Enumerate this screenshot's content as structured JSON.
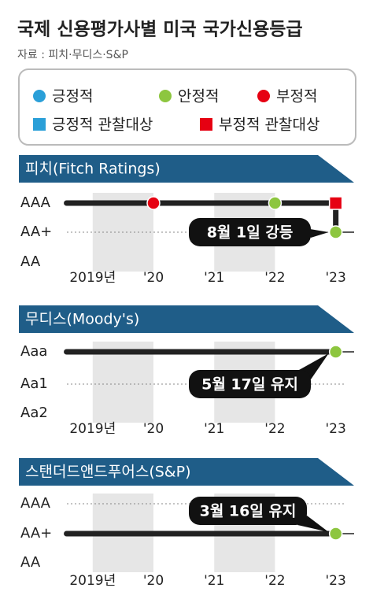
{
  "title": "국제 신용평가사별 미국 국가신용등급",
  "source": "자료 : 피치·무디스·S&P",
  "legend": [
    {
      "label": "긍정적",
      "shape": "circle",
      "color": "#2a9fd8"
    },
    {
      "label": "안정적",
      "shape": "circle",
      "color": "#8dc63f"
    },
    {
      "label": "부정적",
      "shape": "circle",
      "color": "#e60012"
    },
    {
      "label": "긍정적 관찰대상",
      "shape": "square",
      "color": "#2a9fd8"
    },
    {
      "label": "부정적 관찰대상",
      "shape": "square",
      "color": "#e60012"
    }
  ],
  "chart_data": [
    {
      "type": "rating-timeline",
      "title": "피치(Fitch Ratings)",
      "categories": [
        "AAA",
        "AA+",
        "AA"
      ],
      "xlim": [
        2018.2,
        2023.6
      ],
      "xticks": [
        {
          "value": 2019,
          "label": "2019년"
        },
        {
          "value": 2020,
          "label": "'20"
        },
        {
          "value": 2021,
          "label": "'21"
        },
        {
          "value": 2022,
          "label": "'22"
        },
        {
          "value": 2023,
          "label": "'23"
        }
      ],
      "shaded_years": [
        2019,
        2021
      ],
      "dashed_level": "AA+",
      "x": [
        2018.57,
        2023,
        2023
      ],
      "values": [
        "AAA",
        "AAA",
        "AA+"
      ],
      "events": [
        {
          "x": 2020,
          "level": "AAA",
          "marker": 2
        },
        {
          "x": 2022,
          "level": "AAA",
          "marker": 1
        },
        {
          "x": 2023,
          "level": "AAA",
          "marker": 4
        },
        {
          "x": 2023,
          "level": "AA+",
          "marker": 1
        }
      ],
      "annotation": "8월 1일 강등"
    },
    {
      "type": "rating-timeline",
      "title": "무디스(Moody's)",
      "categories": [
        "Aaa",
        "Aa1",
        "Aa2"
      ],
      "xlim": [
        2018.2,
        2023.6
      ],
      "xticks": [
        {
          "value": 2019,
          "label": "2019년"
        },
        {
          "value": 2020,
          "label": "'20"
        },
        {
          "value": 2021,
          "label": "'21"
        },
        {
          "value": 2022,
          "label": "'22"
        },
        {
          "value": 2023,
          "label": "'23"
        }
      ],
      "shaded_years": [
        2019,
        2021
      ],
      "dashed_level": "Aa1",
      "x": [
        2018.57,
        2023
      ],
      "values": [
        "Aaa",
        "Aaa"
      ],
      "events": [
        {
          "x": 2023,
          "level": "Aaa",
          "marker": 1
        }
      ],
      "annotation": "5월 17일 유지"
    },
    {
      "type": "rating-timeline",
      "title": "스탠더드앤드푸어스(S&P)",
      "categories": [
        "AAA",
        "AA+",
        "AA"
      ],
      "xlim": [
        2018.2,
        2023.6
      ],
      "xticks": [
        {
          "value": 2019,
          "label": "2019년"
        },
        {
          "value": 2020,
          "label": "'20"
        },
        {
          "value": 2021,
          "label": "'21"
        },
        {
          "value": 2022,
          "label": "'22"
        },
        {
          "value": 2023,
          "label": "'23"
        }
      ],
      "shaded_years": [
        2019,
        2021
      ],
      "dashed_level": "AAA",
      "x": [
        2018.57,
        2023
      ],
      "values": [
        "AA+",
        "AA+"
      ],
      "events": [
        {
          "x": 2023,
          "level": "AA+",
          "marker": 1
        }
      ],
      "annotation": "3월 16일 유지"
    }
  ]
}
